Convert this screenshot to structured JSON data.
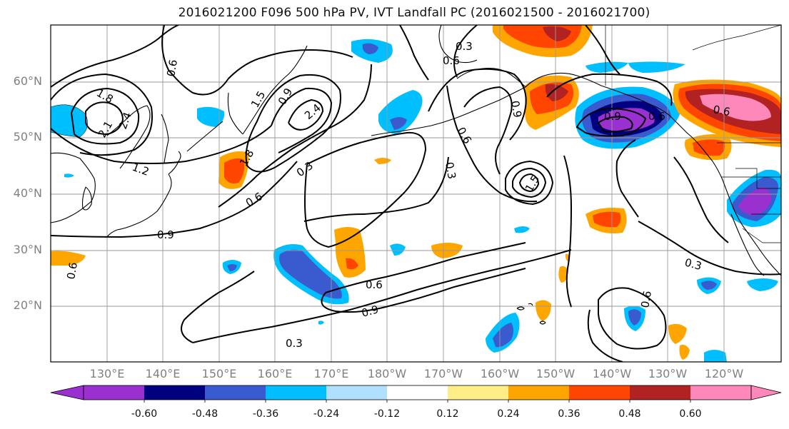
{
  "title": "2016021200 F096 500 hPa PV, IVT Landfall PC (2016021500 - 2016021700)",
  "map": {
    "lat_ticks": [
      "60°N",
      "50°N",
      "40°N",
      "30°N",
      "20°N"
    ],
    "lon_ticks": [
      "130°E",
      "140°E",
      "150°E",
      "160°E",
      "170°E",
      "180°W",
      "170°W",
      "160°W",
      "150°W",
      "140°W",
      "130°W",
      "120°W"
    ],
    "contour_labels": [
      "1.8",
      "2.1",
      "2.4",
      "1.2",
      "0.9",
      "0.6",
      "0.6",
      "1.5",
      "1.8",
      "2.4",
      "0.3",
      "0.6",
      "0.9",
      "0.3",
      "0.6",
      "0.9",
      "0.6",
      "0.3",
      "0.9",
      "1.5",
      "0.6",
      "0.9",
      "0.3",
      "0.6",
      "0.6",
      "0.3",
      "0.6"
    ]
  },
  "colorbar": {
    "tick_labels": [
      "-0.60",
      "-0.48",
      "-0.36",
      "-0.24",
      "-0.12",
      "0.12",
      "0.24",
      "0.36",
      "0.48",
      "0.60"
    ],
    "colors": [
      "#9b30d0",
      "#000080",
      "#3a5bd0",
      "#00bfff",
      "#b0e0ff",
      "#ffffff",
      "#ffee88",
      "#ffa500",
      "#ff4500",
      "#b22222",
      "#ff88bb"
    ]
  }
}
